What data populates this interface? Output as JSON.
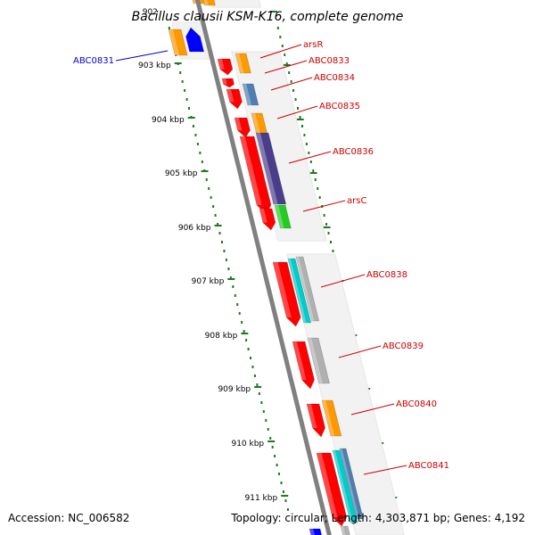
{
  "title": "Bacillus clausii KSM-K16, complete genome",
  "accession_text": "Accession: NC_006582",
  "summary_text": "Topology: circular; Length: 4,303,871 bp; Genes: 4,192",
  "colors": {
    "backbone": "#808080",
    "tick": "#1e7a1e",
    "label_red": "#cc0000",
    "label_blue": "#0000cc",
    "orf": "#ff0000",
    "orange": "#ff9900",
    "blue": "#0000ff",
    "steel": "#4f7fb0",
    "purple": "#4a3d8c",
    "green": "#22cc22",
    "cyan": "#00cccc",
    "grey": "#b0b0b0"
  },
  "kbp_labels": [
    "902",
    "903 kbp",
    "904 kbp",
    "905 kbp",
    "906 kbp",
    "907 kbp",
    "908 kbp",
    "909 kbp",
    "910 kbp",
    "911 kbp"
  ],
  "genes": [
    "arsR",
    "ABC0833",
    "ABC0834",
    "ABC0835",
    "ABC0836",
    "arsC",
    "ABC0838",
    "ABC0839",
    "ABC0840",
    "ABC0841"
  ],
  "left_genes": [
    "ABC0831"
  ]
}
